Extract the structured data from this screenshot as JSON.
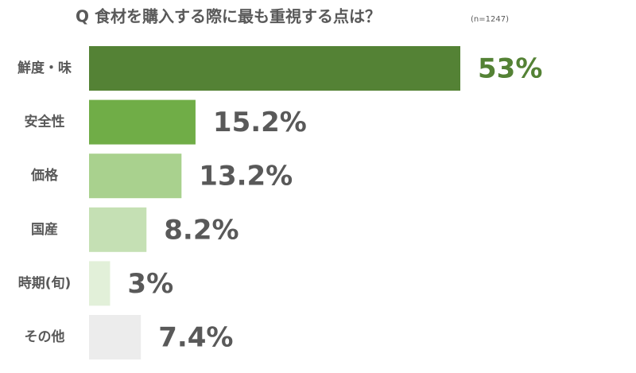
{
  "chart_data": {
    "type": "bar",
    "orientation": "horizontal",
    "title": "Q 食材を購入する際に最も重視する点は？",
    "subtitle": "(n=1247)",
    "categories": [
      "鮮度・味",
      "安全性",
      "価格",
      "国産",
      "時期(旬)",
      "その他"
    ],
    "values": [
      53,
      15.2,
      13.2,
      8.2,
      3,
      7.4
    ],
    "value_labels": [
      "53%",
      "15.2%",
      "13.2%",
      "8.2%",
      "3%",
      "7.4%"
    ],
    "colors": [
      "#548235",
      "#70ad47",
      "#a9d18e",
      "#c5e0b4",
      "#e2f0d9",
      "#ececec"
    ]
  }
}
